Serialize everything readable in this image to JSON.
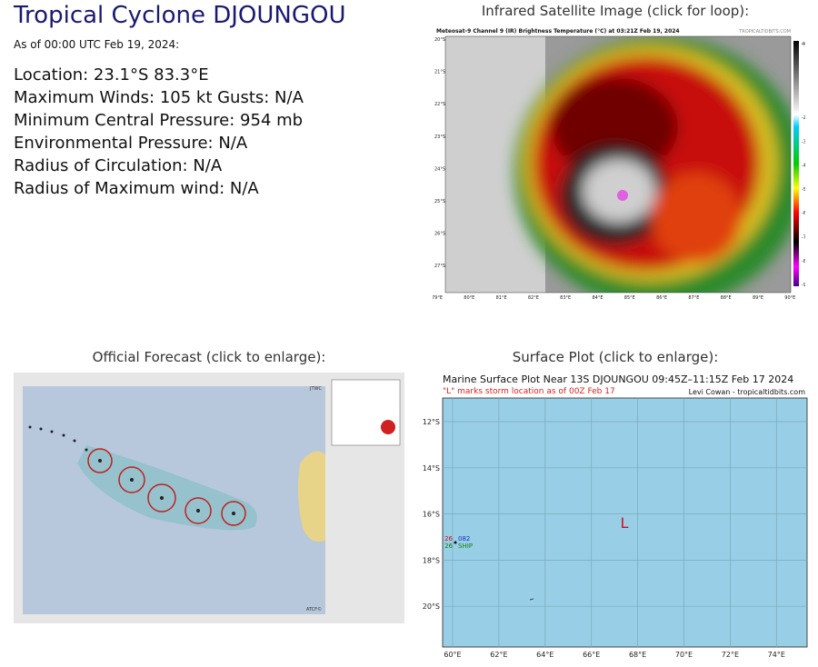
{
  "header": {
    "title": "Tropical Cyclone DJOUNGOU",
    "as_of": "As of 00:00 UTC Feb 19, 2024:"
  },
  "details": [
    "Location: 23.1°S 83.3°E",
    "Maximum Winds: 105 kt  Gusts: N/A",
    "Minimum Central Pressure: 954 mb",
    "Environmental Pressure: N/A",
    "Radius of Circulation: N/A",
    "Radius of Maximum wind: N/A"
  ],
  "satellite": {
    "caption": "Infrared Satellite Image (click for loop):",
    "header": "Meteosat-9 Channel 9 (IR) Brightness Temperature (°C) at 03:21Z Feb 19, 2024",
    "credit": "TROPICALTIDBITS.COM",
    "lat_labels": [
      "20°S",
      "21°S",
      "22°S",
      "23°S",
      "24°S",
      "25°S",
      "26°S",
      "27°S"
    ],
    "lon_labels": [
      "79°E",
      "80°E",
      "81°E",
      "82°E",
      "83°E",
      "84°E",
      "85°E",
      "86°E",
      "87°E",
      "88°E",
      "89°E",
      "90°E"
    ],
    "colorbar_labels": [
      "40",
      "-20",
      "-30",
      "-40",
      "-50",
      "-60",
      "-70",
      "-80",
      "-90"
    ]
  },
  "forecast": {
    "caption": "Official Forecast (click to enlarge):",
    "agency": "JTWC",
    "footer": "ATCF©"
  },
  "surface": {
    "caption": "Surface Plot (click to enlarge):",
    "title": "Marine Surface Plot Near 13S DJOUNGOU 09:45Z–11:15Z Feb 17 2024",
    "subtitle": "\"L\" marks storm location as of 00Z Feb 17",
    "credit": "Levi Cowan - tropicaltidbits.com",
    "lat_labels": [
      "12°S",
      "14°S",
      "16°S",
      "18°S",
      "20°S"
    ],
    "lon_labels": [
      "60°E",
      "62°E",
      "64°E",
      "66°E",
      "68°E",
      "70°E",
      "72°E",
      "74°E"
    ],
    "storm_marker": "L",
    "station": {
      "top_left": "26",
      "top_right": "082",
      "bottom_left": "26",
      "bottom_right": "SHIP"
    }
  }
}
